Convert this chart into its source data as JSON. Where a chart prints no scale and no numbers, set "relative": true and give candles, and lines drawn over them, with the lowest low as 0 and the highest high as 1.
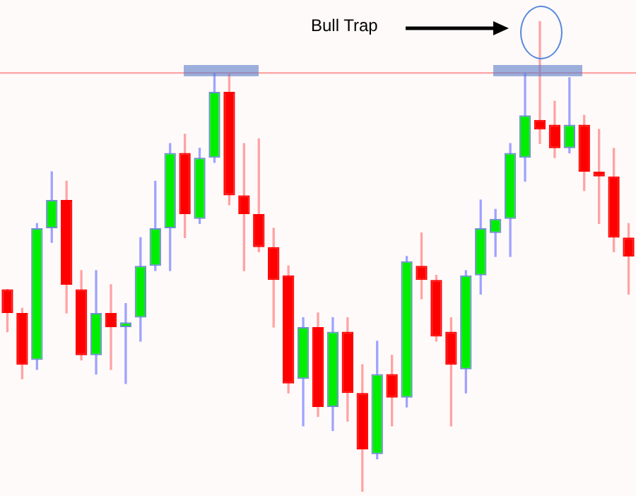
{
  "chart_data": {
    "type": "candlestick",
    "relative": true,
    "categories": [
      null,
      null,
      null,
      null,
      null,
      null,
      null,
      null,
      null,
      null,
      null,
      null,
      null,
      null,
      null,
      null,
      null,
      null,
      null,
      null,
      null,
      null,
      null,
      null,
      null,
      null,
      null,
      null,
      null,
      null,
      null,
      null,
      null,
      null,
      null,
      null,
      null,
      null,
      null,
      null,
      null,
      null,
      null
    ],
    "ohlc": [
      [
        0.43,
        0.43,
        0.34,
        0.38
      ],
      [
        0.38,
        0.39,
        0.24,
        0.27
      ],
      [
        0.28,
        0.57,
        0.26,
        0.56
      ],
      [
        0.56,
        0.68,
        0.53,
        0.62
      ],
      [
        0.62,
        0.66,
        0.38,
        0.44
      ],
      [
        0.43,
        0.47,
        0.28,
        0.29
      ],
      [
        0.29,
        0.47,
        0.25,
        0.38
      ],
      [
        0.38,
        0.44,
        0.26,
        0.35
      ],
      [
        0.35,
        0.4,
        0.23,
        0.36
      ],
      [
        0.37,
        0.54,
        0.32,
        0.48
      ],
      [
        0.48,
        0.66,
        0.47,
        0.56
      ],
      [
        0.56,
        0.74,
        0.47,
        0.72
      ],
      [
        0.72,
        0.76,
        0.54,
        0.59
      ],
      [
        0.58,
        0.73,
        0.57,
        0.71
      ],
      [
        0.71,
        0.89,
        0.7,
        0.85
      ],
      [
        0.85,
        0.89,
        0.61,
        0.63
      ],
      [
        0.63,
        0.74,
        0.47,
        0.59
      ],
      [
        0.59,
        0.75,
        0.51,
        0.52
      ],
      [
        0.52,
        0.56,
        0.35,
        0.45
      ],
      [
        0.46,
        0.48,
        0.21,
        0.23
      ],
      [
        0.24,
        0.37,
        0.14,
        0.35
      ],
      [
        0.35,
        0.38,
        0.16,
        0.18
      ],
      [
        0.18,
        0.37,
        0.13,
        0.34
      ],
      [
        0.34,
        0.37,
        0.15,
        0.21
      ],
      [
        0.21,
        0.27,
        0,
        0.09
      ],
      [
        0.08,
        0.32,
        0.07,
        0.25
      ],
      [
        0.25,
        0.29,
        0.14,
        0.2
      ],
      [
        0.2,
        0.5,
        0.18,
        0.49
      ],
      [
        0.48,
        0.55,
        0.41,
        0.45
      ],
      [
        0.45,
        0.46,
        0.32,
        0.33
      ],
      [
        0.34,
        0.37,
        0.14,
        0.27
      ],
      [
        0.26,
        0.47,
        0.21,
        0.46
      ],
      [
        0.46,
        0.62,
        0.42,
        0.56
      ],
      [
        0.55,
        0.6,
        0.5,
        0.58
      ],
      [
        0.58,
        0.74,
        0.5,
        0.72
      ],
      [
        0.71,
        0.89,
        0.66,
        0.8
      ],
      [
        0.79,
        1,
        0.74,
        0.77
      ],
      [
        0.78,
        0.83,
        0.71,
        0.73
      ],
      [
        0.73,
        0.88,
        0.72,
        0.78
      ],
      [
        0.78,
        0.8,
        0.64,
        0.68
      ],
      [
        0.68,
        0.77,
        0.57,
        0.67
      ],
      [
        0.67,
        0.73,
        0.51,
        0.54
      ],
      [
        0.54,
        0.57,
        0.42,
        0.5
      ]
    ],
    "ref_lines": [
      {
        "axis": "y",
        "value": 0.89,
        "color": "#ff9999"
      }
    ],
    "annotations": [
      "Bull Trap"
    ]
  }
}
